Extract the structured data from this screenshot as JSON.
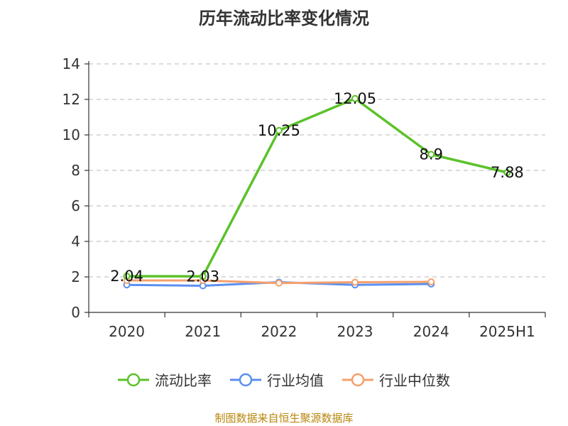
{
  "title": "历年流动比率变化情况",
  "source": "制图数据来自恒生聚源数据库",
  "chart_data": {
    "type": "line",
    "title": "历年流动比率变化情况",
    "categories": [
      "2020",
      "2021",
      "2022",
      "2023",
      "2024",
      "2025H1"
    ],
    "ylim": [
      0,
      14
    ],
    "yticks": [
      0,
      2,
      4,
      6,
      8,
      10,
      12,
      14
    ],
    "grid": "horizontal-dashed",
    "legend_position": "bottom",
    "series": [
      {
        "name": "流动比率",
        "color": "#5cc22a",
        "values": [
          2.04,
          2.03,
          10.25,
          12.05,
          8.9,
          7.88
        ],
        "labels": [
          "2.04",
          "2.03",
          "10.25",
          "12.05",
          "8.9",
          "7.88"
        ]
      },
      {
        "name": "行业均值",
        "color": "#5b8ff0",
        "values": [
          1.55,
          1.5,
          1.7,
          1.55,
          1.6,
          null
        ]
      },
      {
        "name": "行业中位数",
        "color": "#f5a06c",
        "values": [
          1.8,
          1.8,
          1.65,
          1.7,
          1.72,
          null
        ]
      }
    ]
  }
}
